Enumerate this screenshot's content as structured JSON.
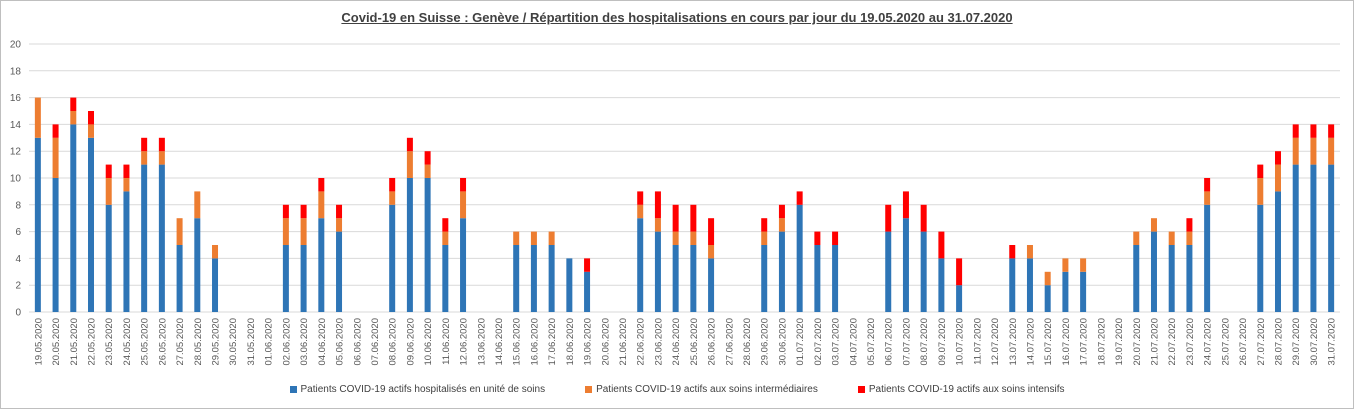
{
  "chart_data": {
    "type": "bar",
    "stacked": true,
    "title": "Covid-19 en Suisse : Genève / Répartition des hospitalisations en cours par jour du 19.05.2020  au 31.07.2020",
    "xlabel": "",
    "ylabel": "",
    "ylim": [
      0,
      20
    ],
    "yticks": [
      0,
      2,
      4,
      6,
      8,
      10,
      12,
      14,
      16,
      18,
      20
    ],
    "grid": true,
    "legend_position": "bottom",
    "categories": [
      "19.05.2020",
      "20.05.2020",
      "21.05.2020",
      "22.05.2020",
      "23.05.2020",
      "24.05.2020",
      "25.05.2020",
      "26.05.2020",
      "27.05.2020",
      "28.05.2020",
      "29.05.2020",
      "30.05.2020",
      "31.05.2020",
      "01.06.2020",
      "02.06.2020",
      "03.06.2020",
      "04.06.2020",
      "05.06.2020",
      "06.06.2020",
      "07.06.2020",
      "08.06.2020",
      "09.06.2020",
      "10.06.2020",
      "11.06.2020",
      "12.06.2020",
      "13.06.2020",
      "14.06.2020",
      "15.06.2020",
      "16.06.2020",
      "17.06.2020",
      "18.06.2020",
      "19.06.2020",
      "20.06.2020",
      "21.06.2020",
      "22.06.2020",
      "23.06.2020",
      "24.06.2020",
      "25.06.2020",
      "26.06.2020",
      "27.06.2020",
      "28.06.2020",
      "29.06.2020",
      "30.06.2020",
      "01.07.2020",
      "02.07.2020",
      "03.07.2020",
      "04.07.2020",
      "05.07.2020",
      "06.07.2020",
      "07.07.2020",
      "08.07.2020",
      "09.07.2020",
      "10.07.2020",
      "11.07.2020",
      "12.07.2020",
      "13.07.2020",
      "14.07.2020",
      "15.07.2020",
      "16.07.2020",
      "17.07.2020",
      "18.07.2020",
      "19.07.2020",
      "20.07.2020",
      "21.07.2020",
      "22.07.2020",
      "23.07.2020",
      "24.07.2020",
      "25.07.2020",
      "26.07.2020",
      "27.07.2020",
      "28.07.2020",
      "29.07.2020",
      "30.07.2020",
      "31.07.2020"
    ],
    "series": [
      {
        "name": "Patients COVID-19 actifs  hospitalisés en unité de soins",
        "color": "#2e75b6",
        "values": [
          13,
          10,
          14,
          13,
          8,
          9,
          11,
          11,
          5,
          7,
          4,
          0,
          0,
          0,
          5,
          5,
          7,
          6,
          0,
          0,
          8,
          10,
          10,
          5,
          7,
          0,
          0,
          5,
          5,
          5,
          4,
          3,
          0,
          0,
          7,
          6,
          5,
          5,
          4,
          0,
          0,
          5,
          6,
          8,
          5,
          5,
          0,
          0,
          6,
          7,
          6,
          4,
          2,
          0,
          0,
          4,
          4,
          2,
          3,
          3,
          0,
          0,
          5,
          6,
          5,
          5,
          8,
          0,
          0,
          8,
          9,
          11,
          11,
          11
        ]
      },
      {
        "name": "Patients COVID-19 actifs aux soins intermédiaires",
        "color": "#ed7d31",
        "values": [
          3,
          3,
          1,
          1,
          2,
          1,
          1,
          1,
          2,
          2,
          1,
          0,
          0,
          0,
          2,
          2,
          2,
          1,
          0,
          0,
          1,
          2,
          1,
          1,
          2,
          0,
          0,
          1,
          1,
          1,
          0,
          0,
          0,
          0,
          1,
          1,
          1,
          1,
          1,
          0,
          0,
          1,
          1,
          0,
          0,
          0,
          0,
          0,
          0,
          0,
          0,
          0,
          0,
          0,
          0,
          0,
          1,
          1,
          1,
          1,
          0,
          0,
          1,
          1,
          1,
          1,
          1,
          0,
          0,
          2,
          2,
          2,
          2,
          2
        ]
      },
      {
        "name": "Patients COVID-19 actifs aux soins intensifs",
        "color": "#ff0000",
        "values": [
          0,
          1,
          1,
          1,
          1,
          1,
          1,
          1,
          0,
          0,
          0,
          0,
          0,
          0,
          1,
          1,
          1,
          1,
          0,
          0,
          1,
          1,
          1,
          1,
          1,
          0,
          0,
          0,
          0,
          0,
          0,
          1,
          0,
          0,
          1,
          2,
          2,
          2,
          2,
          0,
          0,
          1,
          1,
          1,
          1,
          1,
          0,
          0,
          2,
          2,
          2,
          2,
          2,
          0,
          0,
          1,
          0,
          0,
          0,
          0,
          0,
          0,
          0,
          0,
          0,
          1,
          1,
          0,
          0,
          1,
          1,
          1,
          1,
          1
        ]
      }
    ]
  }
}
